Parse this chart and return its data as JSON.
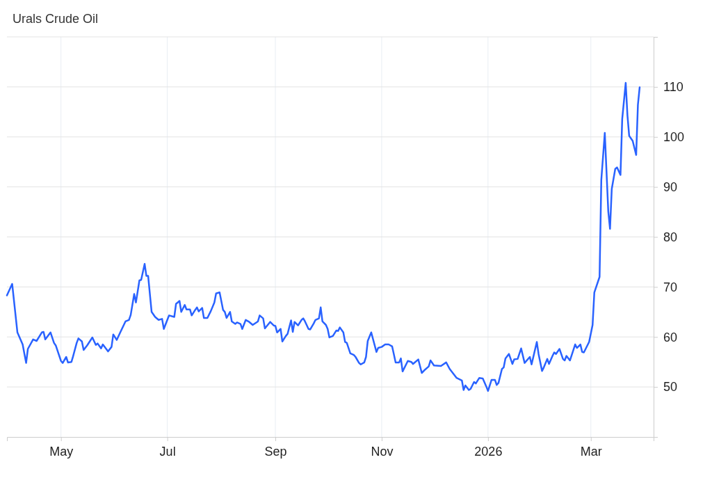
{
  "chart_data": {
    "type": "line",
    "title": "Urals Crude Oil",
    "x": [
      "2025-03-31",
      "2025-04-03",
      "2025-04-06",
      "2025-04-09",
      "2025-04-11",
      "2025-04-12",
      "2025-04-15",
      "2025-04-17",
      "2025-04-20",
      "2025-04-21",
      "2025-04-22",
      "2025-04-25",
      "2025-04-27",
      "2025-04-28",
      "2025-05-01",
      "2025-05-02",
      "2025-05-04",
      "2025-05-05",
      "2025-05-07",
      "2025-05-08",
      "2025-05-10",
      "2025-05-11",
      "2025-05-13",
      "2025-05-14",
      "2025-05-16",
      "2025-05-19",
      "2025-05-21",
      "2025-05-22",
      "2025-05-24",
      "2025-05-25",
      "2025-05-28",
      "2025-05-30",
      "2025-05-31",
      "2025-06-02",
      "2025-06-04",
      "2025-06-07",
      "2025-06-09",
      "2025-06-10",
      "2025-06-12",
      "2025-06-13",
      "2025-06-15",
      "2025-06-16",
      "2025-06-18",
      "2025-06-19",
      "2025-06-20",
      "2025-06-22",
      "2025-06-24",
      "2025-06-26",
      "2025-06-28",
      "2025-06-29",
      "2025-07-01",
      "2025-07-02",
      "2025-07-05",
      "2025-07-06",
      "2025-07-08",
      "2025-07-09",
      "2025-07-11",
      "2025-07-12",
      "2025-07-14",
      "2025-07-15",
      "2025-07-17",
      "2025-07-18",
      "2025-07-19",
      "2025-07-21",
      "2025-07-22",
      "2025-07-24",
      "2025-07-26",
      "2025-07-28",
      "2025-07-29",
      "2025-07-31",
      "2025-08-02",
      "2025-08-03",
      "2025-08-04",
      "2025-08-06",
      "2025-08-07",
      "2025-08-09",
      "2025-08-10",
      "2025-08-12",
      "2025-08-13",
      "2025-08-15",
      "2025-08-17",
      "2025-08-19",
      "2025-08-22",
      "2025-08-23",
      "2025-08-25",
      "2025-08-26",
      "2025-08-29",
      "2025-08-31",
      "2025-09-01",
      "2025-09-02",
      "2025-09-04",
      "2025-09-05",
      "2025-09-07",
      "2025-09-08",
      "2025-09-10",
      "2025-09-11",
      "2025-09-12",
      "2025-09-14",
      "2025-09-16",
      "2025-09-17",
      "2025-09-18",
      "2025-09-20",
      "2025-09-21",
      "2025-09-23",
      "2025-09-24",
      "2025-09-26",
      "2025-09-27",
      "2025-09-28",
      "2025-09-30",
      "2025-10-01",
      "2025-10-02",
      "2025-10-04",
      "2025-10-06",
      "2025-10-07",
      "2025-10-08",
      "2025-10-10",
      "2025-10-11",
      "2025-10-12",
      "2025-10-14",
      "2025-10-16",
      "2025-10-17",
      "2025-10-19",
      "2025-10-20",
      "2025-10-22",
      "2025-10-23",
      "2025-10-24",
      "2025-10-26",
      "2025-10-29",
      "2025-10-30",
      "2025-11-01",
      "2025-11-03",
      "2025-11-05",
      "2025-11-07",
      "2025-11-09",
      "2025-11-11",
      "2025-11-12",
      "2025-11-13",
      "2025-11-16",
      "2025-11-18",
      "2025-11-19",
      "2025-11-22",
      "2025-11-24",
      "2025-11-26",
      "2025-11-28",
      "2025-11-29",
      "2025-12-01",
      "2025-12-05",
      "2025-12-08",
      "2025-12-10",
      "2025-12-12",
      "2025-12-14",
      "2025-12-17",
      "2025-12-18",
      "2025-12-19",
      "2025-12-21",
      "2025-12-22",
      "2025-12-24",
      "2025-12-25",
      "2025-12-27",
      "2025-12-29",
      "2025-12-31",
      "2026-01-01",
      "2026-01-03",
      "2026-01-05",
      "2026-01-06",
      "2026-01-07",
      "2026-01-09",
      "2026-01-10",
      "2026-01-11",
      "2026-01-13",
      "2026-01-15",
      "2026-01-16",
      "2026-01-18",
      "2026-01-20",
      "2026-01-22",
      "2026-01-25",
      "2026-01-26",
      "2026-01-29",
      "2026-01-30",
      "2026-02-01",
      "2026-02-02",
      "2026-02-04",
      "2026-02-05",
      "2026-02-07",
      "2026-02-08",
      "2026-02-09",
      "2026-02-11",
      "2026-02-13",
      "2026-02-14",
      "2026-02-15",
      "2026-02-17",
      "2026-02-19",
      "2026-02-20",
      "2026-02-21",
      "2026-02-23",
      "2026-02-24",
      "2026-02-25",
      "2026-02-28",
      "2026-03-02",
      "2026-03-03",
      "2026-03-06",
      "2026-03-07",
      "2026-03-09",
      "2026-03-11",
      "2026-03-12",
      "2026-03-13",
      "2026-03-15",
      "2026-03-16",
      "2026-03-18",
      "2026-03-19",
      "2026-03-21",
      "2026-03-22",
      "2026-03-23",
      "2026-03-25",
      "2026-03-27",
      "2026-03-28",
      "2026-03-29"
    ],
    "series": [
      {
        "color": "#2962ff",
        "values": [
          68.3,
          70.6,
          60.9,
          58.5,
          54.8,
          57.6,
          59.5,
          59.2,
          60.9,
          61.0,
          59.5,
          60.9,
          58.8,
          58.3,
          55.2,
          54.8,
          56.0,
          54.9,
          55.0,
          56.2,
          58.8,
          59.7,
          59.1,
          57.4,
          58.3,
          59.9,
          58.4,
          58.7,
          57.7,
          58.5,
          57.1,
          58.0,
          60.5,
          59.4,
          60.9,
          63.1,
          63.4,
          64.4,
          68.6,
          66.9,
          71.3,
          71.4,
          74.6,
          72.2,
          72.2,
          65.0,
          64.0,
          63.4,
          63.6,
          61.6,
          63.4,
          64.3,
          64.0,
          66.6,
          67.2,
          65.0,
          66.4,
          65.5,
          65.5,
          64.3,
          65.4,
          65.9,
          65.1,
          65.8,
          63.8,
          63.8,
          65.2,
          66.9,
          68.7,
          68.9,
          65.4,
          65.0,
          63.8,
          65.0,
          63.1,
          62.6,
          62.9,
          62.6,
          61.6,
          63.4,
          63.0,
          62.4,
          63.1,
          64.3,
          63.7,
          61.7,
          63.0,
          62.3,
          62.2,
          60.9,
          61.6,
          59.1,
          60.2,
          60.6,
          63.3,
          61.0,
          63.0,
          62.3,
          63.4,
          63.7,
          63.1,
          61.6,
          61.5,
          62.7,
          63.4,
          63.7,
          65.9,
          63.1,
          62.4,
          61.6,
          59.9,
          60.2,
          61.3,
          61.2,
          61.9,
          60.9,
          59.0,
          58.8,
          56.7,
          56.4,
          56.0,
          54.8,
          54.5,
          54.9,
          56.0,
          59.2,
          60.9,
          57.0,
          57.8,
          58.0,
          58.5,
          58.5,
          58.1,
          54.9,
          54.9,
          55.7,
          53.1,
          55.2,
          55.0,
          54.6,
          55.5,
          52.8,
          53.5,
          54.1,
          55.3,
          54.3,
          54.2,
          54.9,
          53.6,
          52.7,
          51.8,
          51.3,
          49.4,
          50.3,
          49.4,
          49.6,
          51.0,
          50.7,
          51.8,
          51.7,
          50.1,
          49.2,
          51.4,
          51.4,
          50.4,
          50.8,
          53.6,
          53.9,
          55.7,
          56.6,
          54.6,
          55.5,
          55.6,
          57.7,
          54.8,
          56.0,
          54.5,
          59.0,
          56.6,
          53.2,
          53.9,
          55.6,
          54.6,
          56.2,
          56.9,
          56.6,
          57.6,
          55.6,
          55.3,
          56.2,
          55.3,
          57.4,
          58.5,
          57.8,
          58.5,
          57.0,
          56.9,
          59.0,
          62.4,
          68.9,
          72.0,
          91.4,
          100.8,
          85.1,
          81.6,
          89.6,
          93.6,
          93.9,
          92.4,
          103.6,
          110.8,
          104.3,
          100.2,
          99.2,
          96.4,
          106.4,
          109.9
        ]
      }
    ],
    "xlim": [
      "2025-03-31",
      "2026-04-06"
    ],
    "xticks": [
      {
        "value": "2025-05-01",
        "label": "May"
      },
      {
        "value": "2025-07-01",
        "label": "Jul"
      },
      {
        "value": "2025-09-01",
        "label": "Sep"
      },
      {
        "value": "2025-11-01",
        "label": "Nov"
      },
      {
        "value": "2026-01-01",
        "label": "2026"
      },
      {
        "value": "2026-03-01",
        "label": "Mar"
      }
    ],
    "ylim": [
      40,
      120
    ],
    "yticks": [
      50,
      60,
      70,
      80,
      90,
      100,
      110,
      {
        "value": 120,
        "label": null
      }
    ],
    "grid": true,
    "marker": "none",
    "line_style": "solid"
  }
}
